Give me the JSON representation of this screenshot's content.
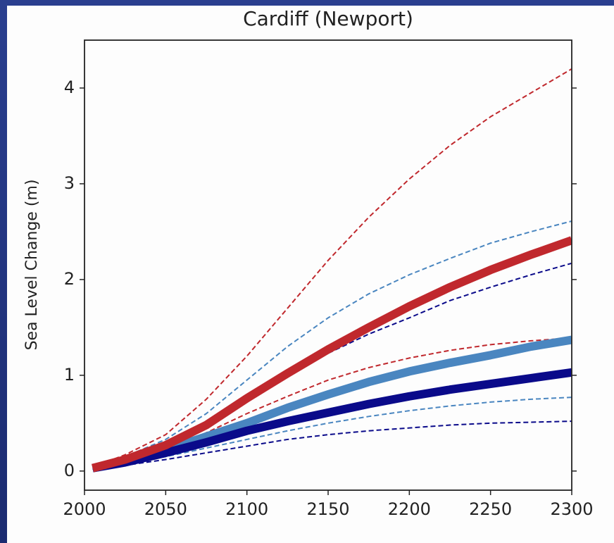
{
  "chart_data": {
    "type": "line",
    "title": "Cardiff (Newport)",
    "y_label": "Sea Level Change (m)",
    "x": [
      2005,
      2025,
      2050,
      2075,
      2100,
      2125,
      2150,
      2175,
      2200,
      2225,
      2250,
      2275,
      2300
    ],
    "xlim": [
      2000,
      2300
    ],
    "xticks": [
      2000,
      2050,
      2100,
      2150,
      2200,
      2250,
      2300
    ],
    "ylim": [
      -0.2,
      4.5
    ],
    "yticks": [
      0,
      1,
      2,
      3,
      4
    ],
    "series": [
      {
        "color": "#c0282d",
        "style": "dashed",
        "width": 2,
        "values": [
          0.04,
          0.17,
          0.38,
          0.75,
          1.2,
          1.7,
          2.2,
          2.65,
          3.05,
          3.4,
          3.7,
          3.95,
          4.2
        ]
      },
      {
        "color": "#c0282d",
        "style": "dashed",
        "width": 2,
        "values": [
          0.02,
          0.1,
          0.22,
          0.4,
          0.6,
          0.78,
          0.95,
          1.08,
          1.18,
          1.26,
          1.32,
          1.36,
          1.39
        ]
      },
      {
        "color": "#4a86c0",
        "style": "dashed",
        "width": 2,
        "values": [
          0.04,
          0.15,
          0.33,
          0.6,
          0.95,
          1.3,
          1.6,
          1.85,
          2.05,
          2.22,
          2.38,
          2.5,
          2.61
        ]
      },
      {
        "color": "#4a86c0",
        "style": "dashed",
        "width": 2,
        "values": [
          0.02,
          0.08,
          0.15,
          0.24,
          0.33,
          0.42,
          0.5,
          0.57,
          0.63,
          0.68,
          0.72,
          0.75,
          0.77
        ]
      },
      {
        "color": "#0a0a8a",
        "style": "dashed",
        "width": 2,
        "values": [
          0.03,
          0.13,
          0.3,
          0.5,
          0.77,
          1.02,
          1.23,
          1.43,
          1.6,
          1.78,
          1.92,
          2.05,
          2.17
        ]
      },
      {
        "color": "#0a0a8a",
        "style": "dashed",
        "width": 2,
        "values": [
          0.02,
          0.06,
          0.12,
          0.19,
          0.26,
          0.33,
          0.38,
          0.42,
          0.45,
          0.48,
          0.5,
          0.51,
          0.52
        ]
      },
      {
        "color": "#4a86c0",
        "style": "solid",
        "width": 12,
        "values": [
          0.03,
          0.1,
          0.22,
          0.36,
          0.5,
          0.66,
          0.8,
          0.93,
          1.04,
          1.13,
          1.21,
          1.3,
          1.37
        ]
      },
      {
        "color": "#0a0a8a",
        "style": "solid",
        "width": 12,
        "values": [
          0.03,
          0.09,
          0.19,
          0.3,
          0.42,
          0.52,
          0.61,
          0.7,
          0.78,
          0.85,
          0.91,
          0.97,
          1.03
        ]
      },
      {
        "color": "#c0282d",
        "style": "solid",
        "width": 12,
        "values": [
          0.03,
          0.12,
          0.27,
          0.48,
          0.76,
          1.02,
          1.27,
          1.5,
          1.72,
          1.92,
          2.1,
          2.26,
          2.41
        ]
      }
    ]
  }
}
